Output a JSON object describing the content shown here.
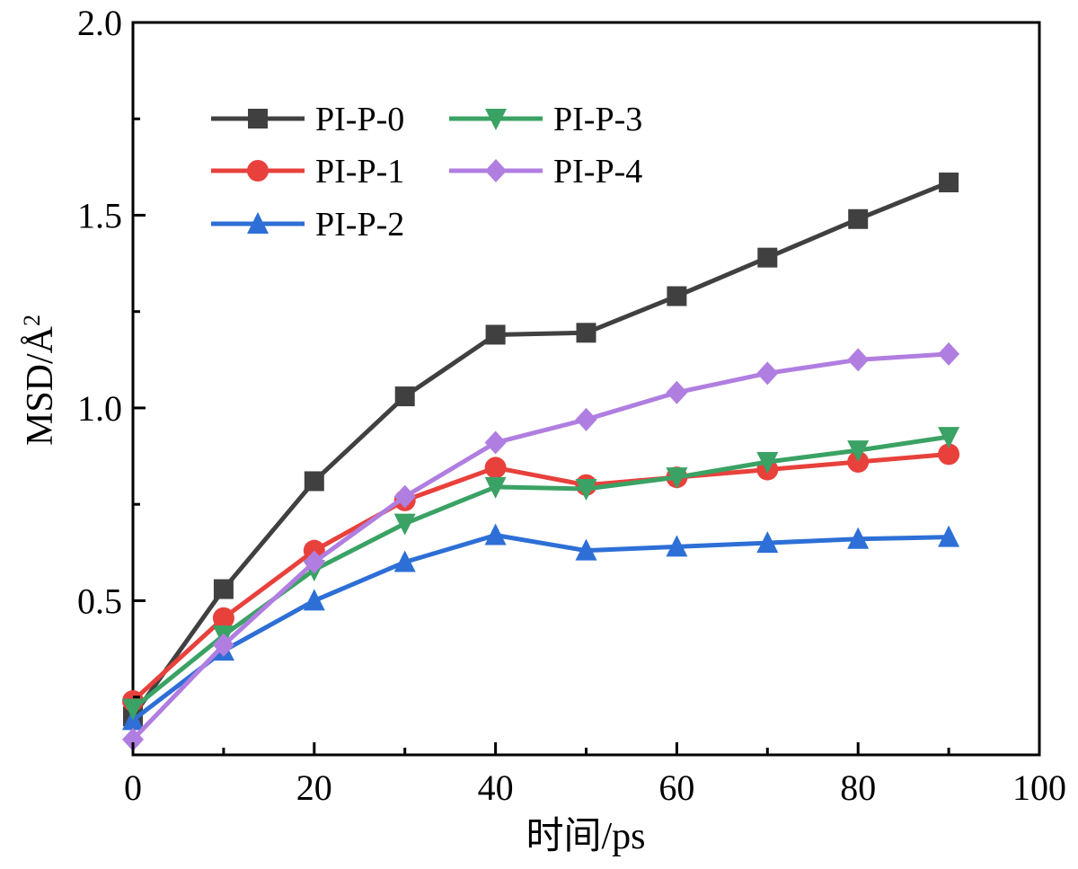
{
  "chart_data": {
    "type": "line",
    "title": "",
    "xlabel": "时间/ps",
    "ylabel": "MSD/Å",
    "ylabel_superscript": "2",
    "xlim": [
      0,
      100
    ],
    "ylim": [
      0.1,
      2.0
    ],
    "xticks": [
      0,
      20,
      40,
      60,
      80,
      100
    ],
    "xtick_labels": [
      "0",
      "20",
      "40",
      "60",
      "80",
      "100"
    ],
    "yticks": [
      0.5,
      1.0,
      1.5,
      2.0
    ],
    "ytick_labels": [
      "0.5",
      "1.0",
      "1.5",
      "2.0"
    ],
    "grid": false,
    "legend_position": "top-left",
    "x": [
      0,
      10,
      20,
      30,
      40,
      50,
      60,
      70,
      80,
      90
    ],
    "series": [
      {
        "name": "PI-P-0",
        "color": "#404040",
        "marker": "square",
        "values": [
          0.2,
          0.53,
          0.81,
          1.03,
          1.19,
          1.195,
          1.29,
          1.39,
          1.49,
          1.585
        ]
      },
      {
        "name": "PI-P-1",
        "color": "#e8413c",
        "marker": "circle",
        "values": [
          0.24,
          0.455,
          0.63,
          0.76,
          0.845,
          0.8,
          0.82,
          0.84,
          0.86,
          0.88
        ]
      },
      {
        "name": "PI-P-2",
        "color": "#2d6fd6",
        "marker": "triangle-up",
        "values": [
          0.19,
          0.37,
          0.5,
          0.6,
          0.67,
          0.63,
          0.64,
          0.65,
          0.66,
          0.665
        ]
      },
      {
        "name": "PI-P-3",
        "color": "#3aa264",
        "marker": "triangle-down",
        "values": [
          0.22,
          0.41,
          0.58,
          0.7,
          0.795,
          0.79,
          0.82,
          0.86,
          0.89,
          0.925
        ]
      },
      {
        "name": "PI-P-4",
        "color": "#b07ee0",
        "marker": "diamond",
        "values": [
          0.14,
          0.385,
          0.6,
          0.77,
          0.91,
          0.97,
          1.04,
          1.09,
          1.125,
          1.14
        ]
      }
    ]
  }
}
